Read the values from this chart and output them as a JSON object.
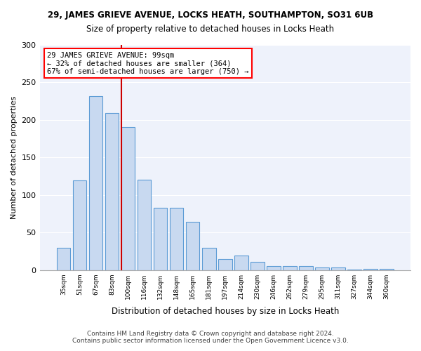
{
  "title": "29, JAMES GRIEVE AVENUE, LOCKS HEATH, SOUTHAMPTON, SO31 6UB",
  "subtitle": "Size of property relative to detached houses in Locks Heath",
  "xlabel": "Distribution of detached houses by size in Locks Heath",
  "ylabel": "Number of detached properties",
  "footer_line1": "Contains HM Land Registry data © Crown copyright and database right 2024.",
  "footer_line2": "Contains public sector information licensed under the Open Government Licence v3.0.",
  "annotation_line1": "29 JAMES GRIEVE AVENUE: 99sqm",
  "annotation_line2": "← 32% of detached houses are smaller (364)",
  "annotation_line3": "67% of semi-detached houses are larger (750) →",
  "bar_labels": [
    "35sqm",
    "51sqm",
    "67sqm",
    "83sqm",
    "100sqm",
    "116sqm",
    "132sqm",
    "148sqm",
    "165sqm",
    "181sqm",
    "197sqm",
    "214sqm",
    "230sqm",
    "246sqm",
    "262sqm",
    "279sqm",
    "295sqm",
    "311sqm",
    "327sqm",
    "344sqm",
    "360sqm"
  ],
  "bar_values": [
    30,
    119,
    232,
    209,
    191,
    120,
    83,
    83,
    64,
    30,
    15,
    19,
    11,
    5,
    5,
    5,
    3,
    3,
    1,
    2,
    2
  ],
  "bar_color": "#c8d9f0",
  "bar_edge_color": "#5b9bd5",
  "vline_color": "#cc0000",
  "vline_pos": 3.575,
  "background_color": "#eef2fb",
  "ylim": [
    0,
    300
  ],
  "yticks": [
    0,
    50,
    100,
    150,
    200,
    250,
    300
  ]
}
